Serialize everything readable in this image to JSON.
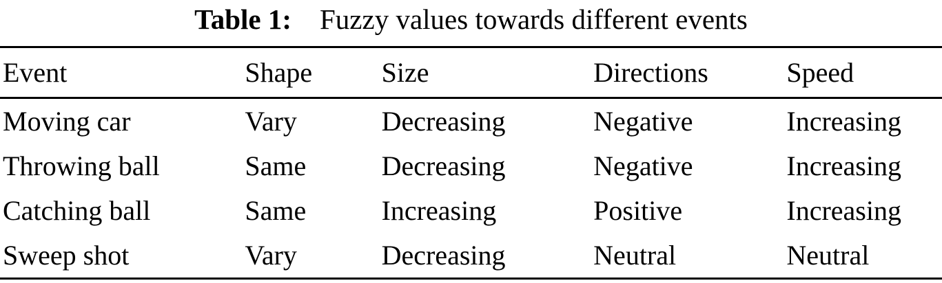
{
  "caption": {
    "label": "Table 1:",
    "text": "Fuzzy values towards different events"
  },
  "table": {
    "headers": [
      "Event",
      "Shape",
      "Size",
      "Directions",
      "Speed"
    ],
    "rows": [
      [
        "Moving car",
        "Vary",
        "Decreasing",
        "Negative",
        "Increasing"
      ],
      [
        "Throwing ball",
        "Same",
        "Decreasing",
        "Negative",
        "Increasing"
      ],
      [
        "Catching ball",
        "Same",
        "Increasing",
        "Positive",
        "Increasing"
      ],
      [
        "Sweep shot",
        "Vary",
        "Decreasing",
        "Neutral",
        "Neutral"
      ]
    ]
  },
  "colors": {
    "text": "#000000",
    "background": "#ffffff",
    "rule": "#000000"
  }
}
